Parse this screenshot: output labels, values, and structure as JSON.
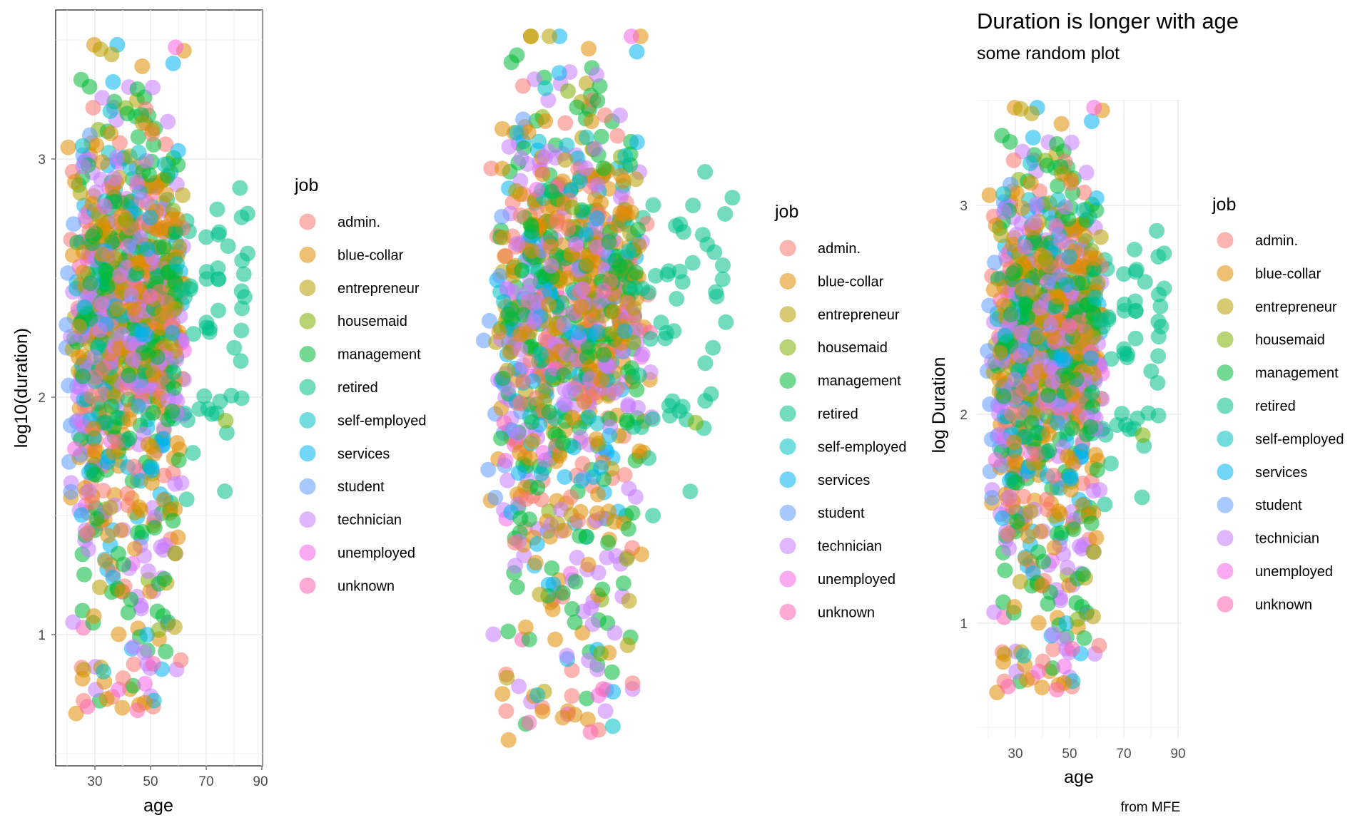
{
  "legend_title": "job",
  "job_colors": {
    "admin.": "#F8766D",
    "blue-collar": "#DE8C00",
    "entrepreneur": "#B79F00",
    "housemaid": "#7CAE00",
    "management": "#00BA38",
    "retired": "#00C08B",
    "self-employed": "#00BFC4",
    "services": "#00B4F0",
    "student": "#619CFF",
    "technician": "#C77CFF",
    "unemployed": "#F564E3",
    "unknown": "#FF64B0"
  },
  "chart_data": [
    {
      "type": "scatter",
      "theme": "bw",
      "title": "",
      "subtitle": "",
      "caption": "",
      "xlabel": "age",
      "ylabel": "log10(duration)",
      "x_ticks": [
        "30",
        "50",
        "70",
        "90"
      ],
      "y_ticks": [
        "1",
        "2",
        "3"
      ],
      "xlim": [
        18,
        96
      ],
      "ylim": [
        0.52,
        3.58
      ],
      "grid": true,
      "legend_position": "right",
      "series": [
        {
          "name": "admin."
        },
        {
          "name": "blue-collar"
        },
        {
          "name": "entrepreneur"
        },
        {
          "name": "housemaid"
        },
        {
          "name": "management"
        },
        {
          "name": "retired"
        },
        {
          "name": "self-employed"
        },
        {
          "name": "services"
        },
        {
          "name": "student"
        },
        {
          "name": "technician"
        },
        {
          "name": "unemployed"
        },
        {
          "name": "unknown"
        }
      ],
      "point_count": 1100
    },
    {
      "type": "scatter",
      "theme": "void",
      "title": "",
      "subtitle": "",
      "caption": "",
      "xlabel": "",
      "ylabel": "",
      "x_ticks": [],
      "y_ticks": [],
      "xlim": [
        18,
        96
      ],
      "ylim": [
        0.52,
        3.58
      ],
      "grid": false,
      "legend_position": "right",
      "series": [
        {
          "name": "admin."
        },
        {
          "name": "blue-collar"
        },
        {
          "name": "entrepreneur"
        },
        {
          "name": "housemaid"
        },
        {
          "name": "management"
        },
        {
          "name": "retired"
        },
        {
          "name": "self-employed"
        },
        {
          "name": "services"
        },
        {
          "name": "student"
        },
        {
          "name": "technician"
        },
        {
          "name": "unemployed"
        },
        {
          "name": "unknown"
        }
      ],
      "point_count": 1100
    },
    {
      "type": "scatter",
      "theme": "minimal",
      "title": "Duration is longer with age",
      "subtitle": "some random plot",
      "caption": "from MFE",
      "xlabel": "age",
      "ylabel": "log Duration",
      "x_ticks": [
        "30",
        "50",
        "70",
        "90"
      ],
      "y_ticks": [
        "1",
        "2",
        "3"
      ],
      "xlim": [
        18,
        96
      ],
      "ylim": [
        0.52,
        3.58
      ],
      "grid": true,
      "legend_position": "right",
      "series": [
        {
          "name": "admin."
        },
        {
          "name": "blue-collar"
        },
        {
          "name": "entrepreneur"
        },
        {
          "name": "housemaid"
        },
        {
          "name": "management"
        },
        {
          "name": "retired"
        },
        {
          "name": "self-employed"
        },
        {
          "name": "services"
        },
        {
          "name": "student"
        },
        {
          "name": "technician"
        },
        {
          "name": "unemployed"
        },
        {
          "name": "unknown"
        }
      ],
      "point_count": 1100
    }
  ]
}
